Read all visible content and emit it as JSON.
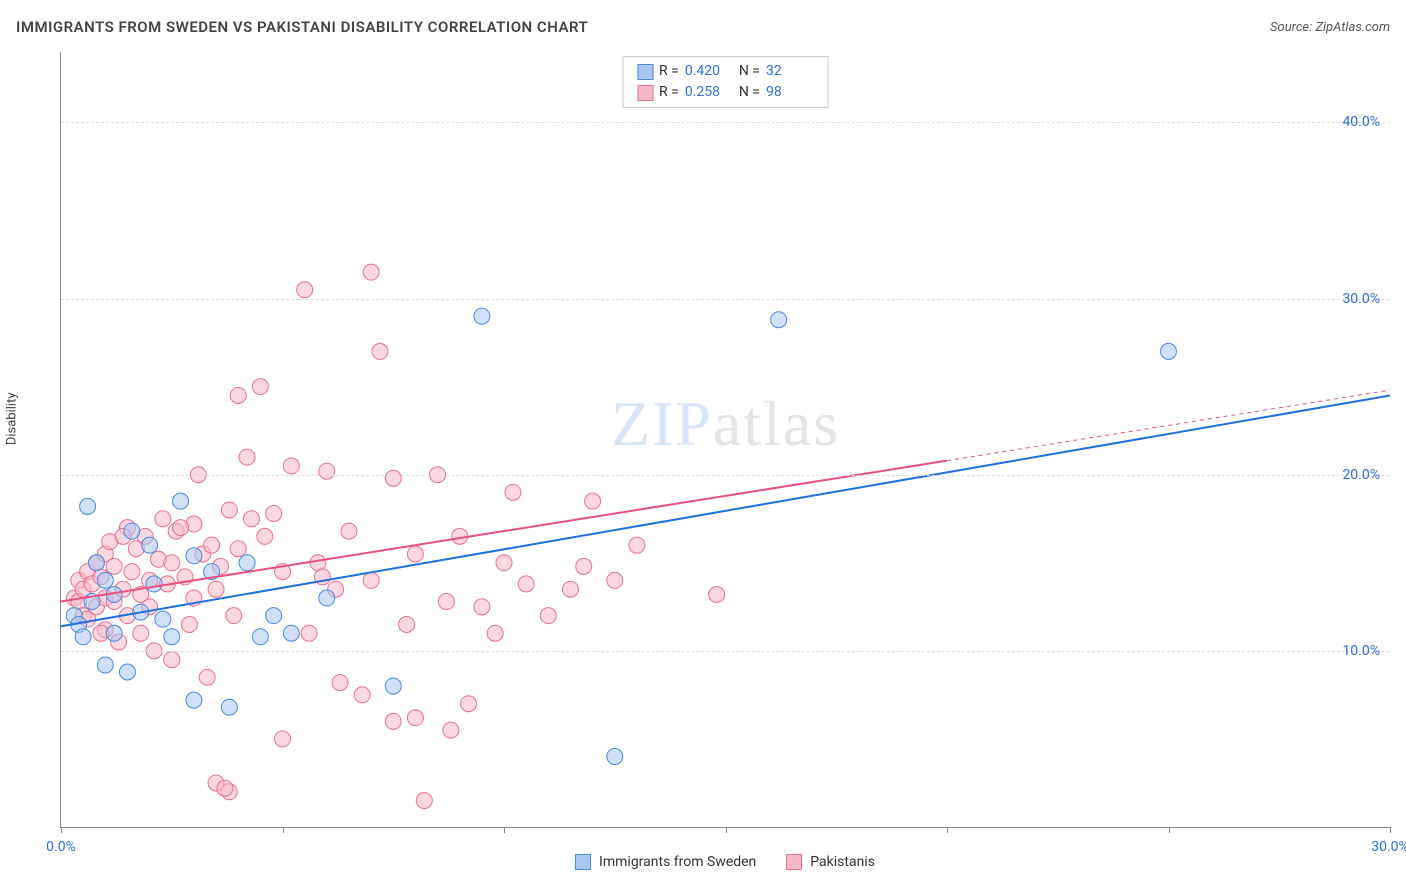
{
  "title": "IMMIGRANTS FROM SWEDEN VS PAKISTANI DISABILITY CORRELATION CHART",
  "source_label": "Source: ",
  "source_name": "ZipAtlas.com",
  "y_axis_label": "Disability",
  "watermark_bold": "ZIP",
  "watermark_thin": "atlas",
  "chart": {
    "type": "scatter",
    "background_color": "#ffffff",
    "grid_color": "#dddddd",
    "axis_color": "#888888",
    "tick_label_color": "#2b6fe0",
    "xlim": [
      0,
      30
    ],
    "ylim": [
      0,
      44
    ],
    "x_ticks": [
      0,
      5,
      10,
      15,
      20,
      25,
      30
    ],
    "x_tick_labels": {
      "0": "0.0%",
      "30": "30.0%"
    },
    "y_gridlines": [
      10,
      20,
      30,
      40
    ],
    "y_tick_labels": {
      "10": "10.0%",
      "20": "20.0%",
      "30": "30.0%",
      "40": "40.0%"
    },
    "marker_radius": 8,
    "marker_opacity": 0.55,
    "line_width": 2,
    "series": [
      {
        "key": "sweden",
        "label": "Immigrants from Sweden",
        "color_fill": "#a7c7f2",
        "color_stroke": "#4a8ae0",
        "line_color": "#1f6fe0",
        "r_value": "0.420",
        "n_value": "32",
        "points": [
          [
            0.3,
            12.0
          ],
          [
            0.4,
            11.5
          ],
          [
            0.5,
            10.8
          ],
          [
            0.6,
            18.2
          ],
          [
            0.8,
            15.0
          ],
          [
            1.0,
            14.0
          ],
          [
            1.0,
            9.2
          ],
          [
            1.2,
            11.0
          ],
          [
            1.2,
            13.2
          ],
          [
            1.5,
            8.8
          ],
          [
            1.8,
            12.2
          ],
          [
            2.0,
            16.0
          ],
          [
            2.1,
            13.8
          ],
          [
            2.5,
            10.8
          ],
          [
            2.7,
            18.5
          ],
          [
            3.0,
            7.2
          ],
          [
            3.0,
            15.4
          ],
          [
            3.4,
            14.5
          ],
          [
            3.8,
            6.8
          ],
          [
            4.2,
            15.0
          ],
          [
            4.5,
            10.8
          ],
          [
            4.8,
            12.0
          ],
          [
            5.2,
            11.0
          ],
          [
            6.0,
            13.0
          ],
          [
            7.5,
            8.0
          ],
          [
            9.5,
            29.0
          ],
          [
            12.5,
            4.0
          ],
          [
            16.2,
            28.8
          ],
          [
            25.0,
            27.0
          ],
          [
            1.6,
            16.8
          ],
          [
            0.7,
            12.8
          ],
          [
            2.3,
            11.8
          ]
        ],
        "trend_line": {
          "x1": 0,
          "y1": 11.4,
          "x2": 30,
          "y2": 24.5
        },
        "trend_dash_from_x": null
      },
      {
        "key": "pakistanis",
        "label": "Pakistanis",
        "color_fill": "#f7b8c8",
        "color_stroke": "#e87090",
        "line_color": "#e85080",
        "r_value": "0.258",
        "n_value": "98",
        "points": [
          [
            0.3,
            13.0
          ],
          [
            0.4,
            12.8
          ],
          [
            0.4,
            14.0
          ],
          [
            0.5,
            13.5
          ],
          [
            0.5,
            12.0
          ],
          [
            0.6,
            14.5
          ],
          [
            0.6,
            11.8
          ],
          [
            0.7,
            13.8
          ],
          [
            0.8,
            12.5
          ],
          [
            0.8,
            15.0
          ],
          [
            0.9,
            14.2
          ],
          [
            1.0,
            13.0
          ],
          [
            1.0,
            15.5
          ],
          [
            1.0,
            11.2
          ],
          [
            1.1,
            16.2
          ],
          [
            1.2,
            12.8
          ],
          [
            1.2,
            14.8
          ],
          [
            1.3,
            10.5
          ],
          [
            1.4,
            13.5
          ],
          [
            1.5,
            17.0
          ],
          [
            1.5,
            12.0
          ],
          [
            1.6,
            14.5
          ],
          [
            1.7,
            15.8
          ],
          [
            1.8,
            11.0
          ],
          [
            1.8,
            13.2
          ],
          [
            1.9,
            16.5
          ],
          [
            2.0,
            14.0
          ],
          [
            2.0,
            12.5
          ],
          [
            2.1,
            10.0
          ],
          [
            2.2,
            15.2
          ],
          [
            2.3,
            17.5
          ],
          [
            2.4,
            13.8
          ],
          [
            2.5,
            15.0
          ],
          [
            2.5,
            9.5
          ],
          [
            2.6,
            16.8
          ],
          [
            2.8,
            14.2
          ],
          [
            2.9,
            11.5
          ],
          [
            3.0,
            17.2
          ],
          [
            3.0,
            13.0
          ],
          [
            3.1,
            20.0
          ],
          [
            3.2,
            15.5
          ],
          [
            3.3,
            8.5
          ],
          [
            3.4,
            16.0
          ],
          [
            3.5,
            13.5
          ],
          [
            3.5,
            2.5
          ],
          [
            3.6,
            14.8
          ],
          [
            3.8,
            2.0
          ],
          [
            3.8,
            18.0
          ],
          [
            3.9,
            12.0
          ],
          [
            4.0,
            15.8
          ],
          [
            4.0,
            24.5
          ],
          [
            4.2,
            21.0
          ],
          [
            4.5,
            25.0
          ],
          [
            4.6,
            16.5
          ],
          [
            4.8,
            17.8
          ],
          [
            5.0,
            5.0
          ],
          [
            5.0,
            14.5
          ],
          [
            5.2,
            20.5
          ],
          [
            5.5,
            30.5
          ],
          [
            5.6,
            11.0
          ],
          [
            5.8,
            15.0
          ],
          [
            6.0,
            20.2
          ],
          [
            6.2,
            13.5
          ],
          [
            6.5,
            16.8
          ],
          [
            6.8,
            7.5
          ],
          [
            7.0,
            31.5
          ],
          [
            7.0,
            14.0
          ],
          [
            7.2,
            27.0
          ],
          [
            7.5,
            19.8
          ],
          [
            7.5,
            6.0
          ],
          [
            7.8,
            11.5
          ],
          [
            8.0,
            15.5
          ],
          [
            8.0,
            6.2
          ],
          [
            8.2,
            1.5
          ],
          [
            8.5,
            20.0
          ],
          [
            8.8,
            5.5
          ],
          [
            9.0,
            16.5
          ],
          [
            9.2,
            7.0
          ],
          [
            9.5,
            12.5
          ],
          [
            10.0,
            15.0
          ],
          [
            10.2,
            19.0
          ],
          [
            10.5,
            13.8
          ],
          [
            11.0,
            12.0
          ],
          [
            11.5,
            13.5
          ],
          [
            12.0,
            18.5
          ],
          [
            12.5,
            14.0
          ],
          [
            13.0,
            16.0
          ],
          [
            14.8,
            13.2
          ],
          [
            3.7,
            2.2
          ],
          [
            2.7,
            17.0
          ],
          [
            1.4,
            16.5
          ],
          [
            0.9,
            11.0
          ],
          [
            4.3,
            17.5
          ],
          [
            5.9,
            14.2
          ],
          [
            6.3,
            8.2
          ],
          [
            8.7,
            12.8
          ],
          [
            9.8,
            11.0
          ],
          [
            11.8,
            14.8
          ]
        ],
        "trend_line": {
          "x1": 0,
          "y1": 12.8,
          "x2": 30,
          "y2": 24.8
        },
        "trend_dash_from_x": 20
      }
    ],
    "stats_box": {
      "r_label": "R =",
      "n_label": "N ="
    }
  }
}
